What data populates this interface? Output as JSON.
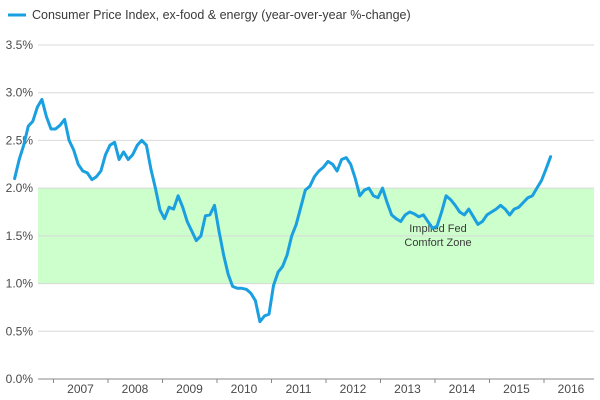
{
  "chart_data": {
    "type": "line",
    "title": "",
    "legend": {
      "placement": "top-left",
      "entries": [
        "Consumer Price Index, ex-food & energy (year-over-year %-change)"
      ]
    },
    "series": [
      {
        "name": "Consumer Price Index, ex-food & energy (year-over-year %-change)",
        "color": "#1a9fe0",
        "points": [
          [
            "2006-04",
            2.1
          ],
          [
            "2006-05",
            2.3
          ],
          [
            "2006-06",
            2.45
          ],
          [
            "2006-07",
            2.65
          ],
          [
            "2006-08",
            2.7
          ],
          [
            "2006-09",
            2.85
          ],
          [
            "2006-10",
            2.93
          ],
          [
            "2006-11",
            2.75
          ],
          [
            "2006-12",
            2.62
          ],
          [
            "2007-01",
            2.62
          ],
          [
            "2007-02",
            2.66
          ],
          [
            "2007-03",
            2.72
          ],
          [
            "2007-04",
            2.5
          ],
          [
            "2007-05",
            2.4
          ],
          [
            "2007-06",
            2.25
          ],
          [
            "2007-07",
            2.18
          ],
          [
            "2007-08",
            2.16
          ],
          [
            "2007-09",
            2.09
          ],
          [
            "2007-10",
            2.12
          ],
          [
            "2007-11",
            2.18
          ],
          [
            "2007-12",
            2.35
          ],
          [
            "2008-01",
            2.45
          ],
          [
            "2008-02",
            2.48
          ],
          [
            "2008-03",
            2.3
          ],
          [
            "2008-04",
            2.38
          ],
          [
            "2008-05",
            2.3
          ],
          [
            "2008-06",
            2.35
          ],
          [
            "2008-07",
            2.45
          ],
          [
            "2008-08",
            2.5
          ],
          [
            "2008-09",
            2.45
          ],
          [
            "2008-10",
            2.2
          ],
          [
            "2008-11",
            2.0
          ],
          [
            "2008-12",
            1.77
          ],
          [
            "2009-01",
            1.68
          ],
          [
            "2009-02",
            1.8
          ],
          [
            "2009-03",
            1.78
          ],
          [
            "2009-04",
            1.92
          ],
          [
            "2009-05",
            1.8
          ],
          [
            "2009-06",
            1.65
          ],
          [
            "2009-07",
            1.55
          ],
          [
            "2009-08",
            1.45
          ],
          [
            "2009-09",
            1.5
          ],
          [
            "2009-10",
            1.71
          ],
          [
            "2009-11",
            1.72
          ],
          [
            "2009-12",
            1.82
          ],
          [
            "2010-01",
            1.55
          ],
          [
            "2010-02",
            1.3
          ],
          [
            "2010-03",
            1.1
          ],
          [
            "2010-04",
            0.97
          ],
          [
            "2010-05",
            0.95
          ],
          [
            "2010-06",
            0.95
          ],
          [
            "2010-07",
            0.94
          ],
          [
            "2010-08",
            0.9
          ],
          [
            "2010-09",
            0.82
          ],
          [
            "2010-10",
            0.6
          ],
          [
            "2010-11",
            0.66
          ],
          [
            "2010-12",
            0.68
          ],
          [
            "2011-01",
            0.98
          ],
          [
            "2011-02",
            1.12
          ],
          [
            "2011-03",
            1.18
          ],
          [
            "2011-04",
            1.3
          ],
          [
            "2011-05",
            1.5
          ],
          [
            "2011-06",
            1.62
          ],
          [
            "2011-07",
            1.8
          ],
          [
            "2011-08",
            1.98
          ],
          [
            "2011-09",
            2.02
          ],
          [
            "2011-10",
            2.12
          ],
          [
            "2011-11",
            2.18
          ],
          [
            "2011-12",
            2.22
          ],
          [
            "2012-01",
            2.28
          ],
          [
            "2012-02",
            2.25
          ],
          [
            "2012-03",
            2.18
          ],
          [
            "2012-04",
            2.3
          ],
          [
            "2012-05",
            2.32
          ],
          [
            "2012-06",
            2.25
          ],
          [
            "2012-07",
            2.1
          ],
          [
            "2012-08",
            1.92
          ],
          [
            "2012-09",
            1.98
          ],
          [
            "2012-10",
            2.0
          ],
          [
            "2012-11",
            1.92
          ],
          [
            "2012-12",
            1.9
          ],
          [
            "2013-01",
            2.0
          ],
          [
            "2013-02",
            1.85
          ],
          [
            "2013-03",
            1.72
          ],
          [
            "2013-04",
            1.68
          ],
          [
            "2013-05",
            1.65
          ],
          [
            "2013-06",
            1.72
          ],
          [
            "2013-07",
            1.75
          ],
          [
            "2013-08",
            1.73
          ],
          [
            "2013-09",
            1.7
          ],
          [
            "2013-10",
            1.72
          ],
          [
            "2013-11",
            1.65
          ],
          [
            "2013-12",
            1.58
          ],
          [
            "2014-01",
            1.6
          ],
          [
            "2014-02",
            1.75
          ],
          [
            "2014-03",
            1.92
          ],
          [
            "2014-04",
            1.88
          ],
          [
            "2014-05",
            1.82
          ],
          [
            "2014-06",
            1.75
          ],
          [
            "2014-07",
            1.72
          ],
          [
            "2014-08",
            1.78
          ],
          [
            "2014-09",
            1.7
          ],
          [
            "2014-10",
            1.62
          ],
          [
            "2014-11",
            1.65
          ],
          [
            "2014-12",
            1.72
          ],
          [
            "2015-01",
            1.75
          ],
          [
            "2015-02",
            1.78
          ],
          [
            "2015-03",
            1.82
          ],
          [
            "2015-04",
            1.78
          ],
          [
            "2015-05",
            1.72
          ],
          [
            "2015-06",
            1.78
          ],
          [
            "2015-07",
            1.8
          ],
          [
            "2015-08",
            1.85
          ],
          [
            "2015-09",
            1.9
          ],
          [
            "2015-10",
            1.92
          ],
          [
            "2015-11",
            2.0
          ],
          [
            "2015-12",
            2.08
          ],
          [
            "2016-01",
            2.2
          ],
          [
            "2016-02",
            2.33
          ]
        ]
      }
    ],
    "x_axis": {
      "ticks": [
        "2007",
        "2008",
        "2009",
        "2010",
        "2011",
        "2012",
        "2013",
        "2014",
        "2015",
        "2016"
      ]
    },
    "y_axis": {
      "ylim": [
        0,
        3.5
      ],
      "ticks": [
        "0.0%",
        "0.5%",
        "1.0%",
        "1.5%",
        "2.0%",
        "2.5%",
        "3.0%",
        "3.5%"
      ],
      "gridlines": true
    },
    "shaded_band": {
      "y_range": [
        1.0,
        2.0
      ],
      "color": "#ccffcc",
      "label_line1": "Implied Fed",
      "label_line2": "Comfort Zone"
    }
  }
}
